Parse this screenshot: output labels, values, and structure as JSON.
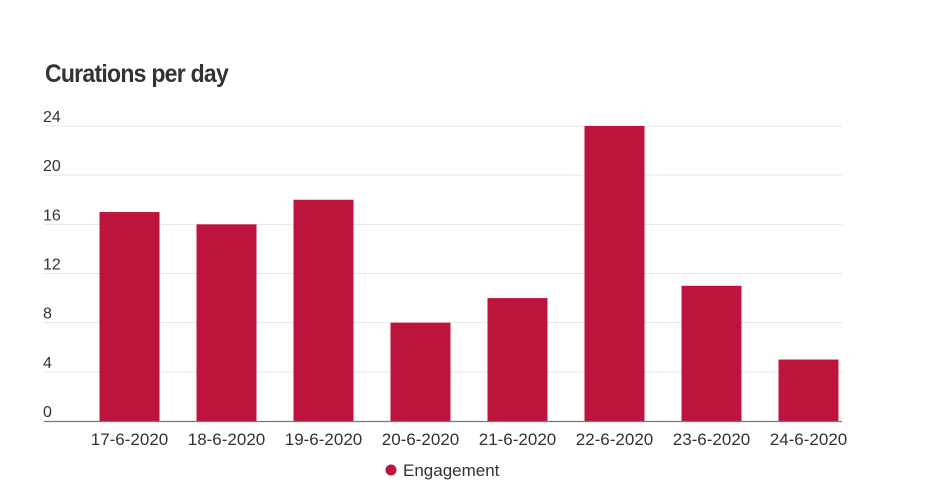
{
  "chart_data": {
    "type": "bar",
    "title": "Curations per day",
    "categories": [
      "17-6-2020",
      "18-6-2020",
      "19-6-2020",
      "20-6-2020",
      "21-6-2020",
      "22-6-2020",
      "23-6-2020",
      "24-6-2020"
    ],
    "series": [
      {
        "name": "Engagement",
        "values": [
          17,
          16,
          18,
          8,
          10,
          24,
          11,
          5
        ],
        "color": "#bc143d"
      }
    ],
    "yticks": [
      0,
      4,
      8,
      12,
      16,
      20,
      24
    ],
    "ylim": [
      0,
      24
    ],
    "grid": true,
    "legend_position": "bottom-center"
  }
}
